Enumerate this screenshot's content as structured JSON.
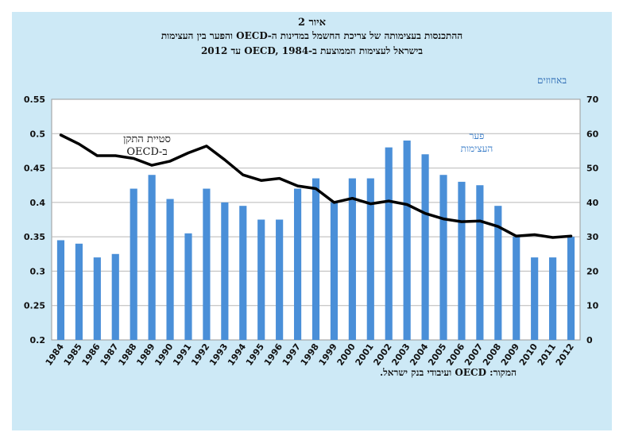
{
  "title": {
    "line1": "איור 2",
    "line2": "ההתכנסות בעצימותה של צריכת החשמל במדינות ה-OECD והפער בין העצימות",
    "line3": "בישראל לעצימות הממוצעת ב-OECD, 1984 עד 2012"
  },
  "ylabel_right": "באחוזים",
  "source": "המקור: OECD ועיבודי בנק ישראל.",
  "colors": {
    "background": "#cde9f6",
    "bars": "#4a8fd8",
    "line": "#000000"
  },
  "chart_data": {
    "type": "bar",
    "categories": [
      "1984",
      "1985",
      "1986",
      "1987",
      "1988",
      "1989",
      "1990",
      "1991",
      "1992",
      "1993",
      "1994",
      "1995",
      "1996",
      "1997",
      "1998",
      "1999",
      "2000",
      "2001",
      "2002",
      "2003",
      "2004",
      "2005",
      "2006",
      "2007",
      "2008",
      "2009",
      "2010",
      "2011",
      "2012"
    ],
    "series": [
      {
        "name": "פער העצימות",
        "type": "bar",
        "axis": "right",
        "values": [
          29,
          28,
          24,
          25,
          44,
          48,
          41,
          31,
          44,
          40,
          39,
          35,
          35,
          44,
          47,
          40,
          47,
          47,
          56,
          58,
          54,
          48,
          46,
          45,
          39,
          30,
          24,
          24,
          30
        ]
      },
      {
        "name": "סטיית התקן ב-OECD",
        "type": "line",
        "axis": "left",
        "values": [
          0.498,
          0.485,
          0.468,
          0.468,
          0.464,
          0.454,
          0.46,
          0.472,
          0.482,
          0.462,
          0.44,
          0.432,
          0.435,
          0.424,
          0.42,
          0.4,
          0.406,
          0.398,
          0.402,
          0.397,
          0.384,
          0.376,
          0.372,
          0.373,
          0.365,
          0.351,
          0.353,
          0.349,
          0.351
        ]
      }
    ],
    "yleft": {
      "ylim": [
        0.2,
        0.55
      ],
      "ticks": [
        "0.2",
        "0.25",
        "0.3",
        "0.35",
        "0.4",
        "0.45",
        "0.5",
        "0.55"
      ]
    },
    "yright": {
      "ylim": [
        0,
        70
      ],
      "ticks": [
        "0",
        "10",
        "20",
        "30",
        "40",
        "50",
        "60",
        "70"
      ]
    },
    "series_labels": {
      "line": [
        "סטיית התקן",
        "ב-OECD"
      ],
      "bars": [
        "פער",
        "העצימות"
      ]
    }
  }
}
